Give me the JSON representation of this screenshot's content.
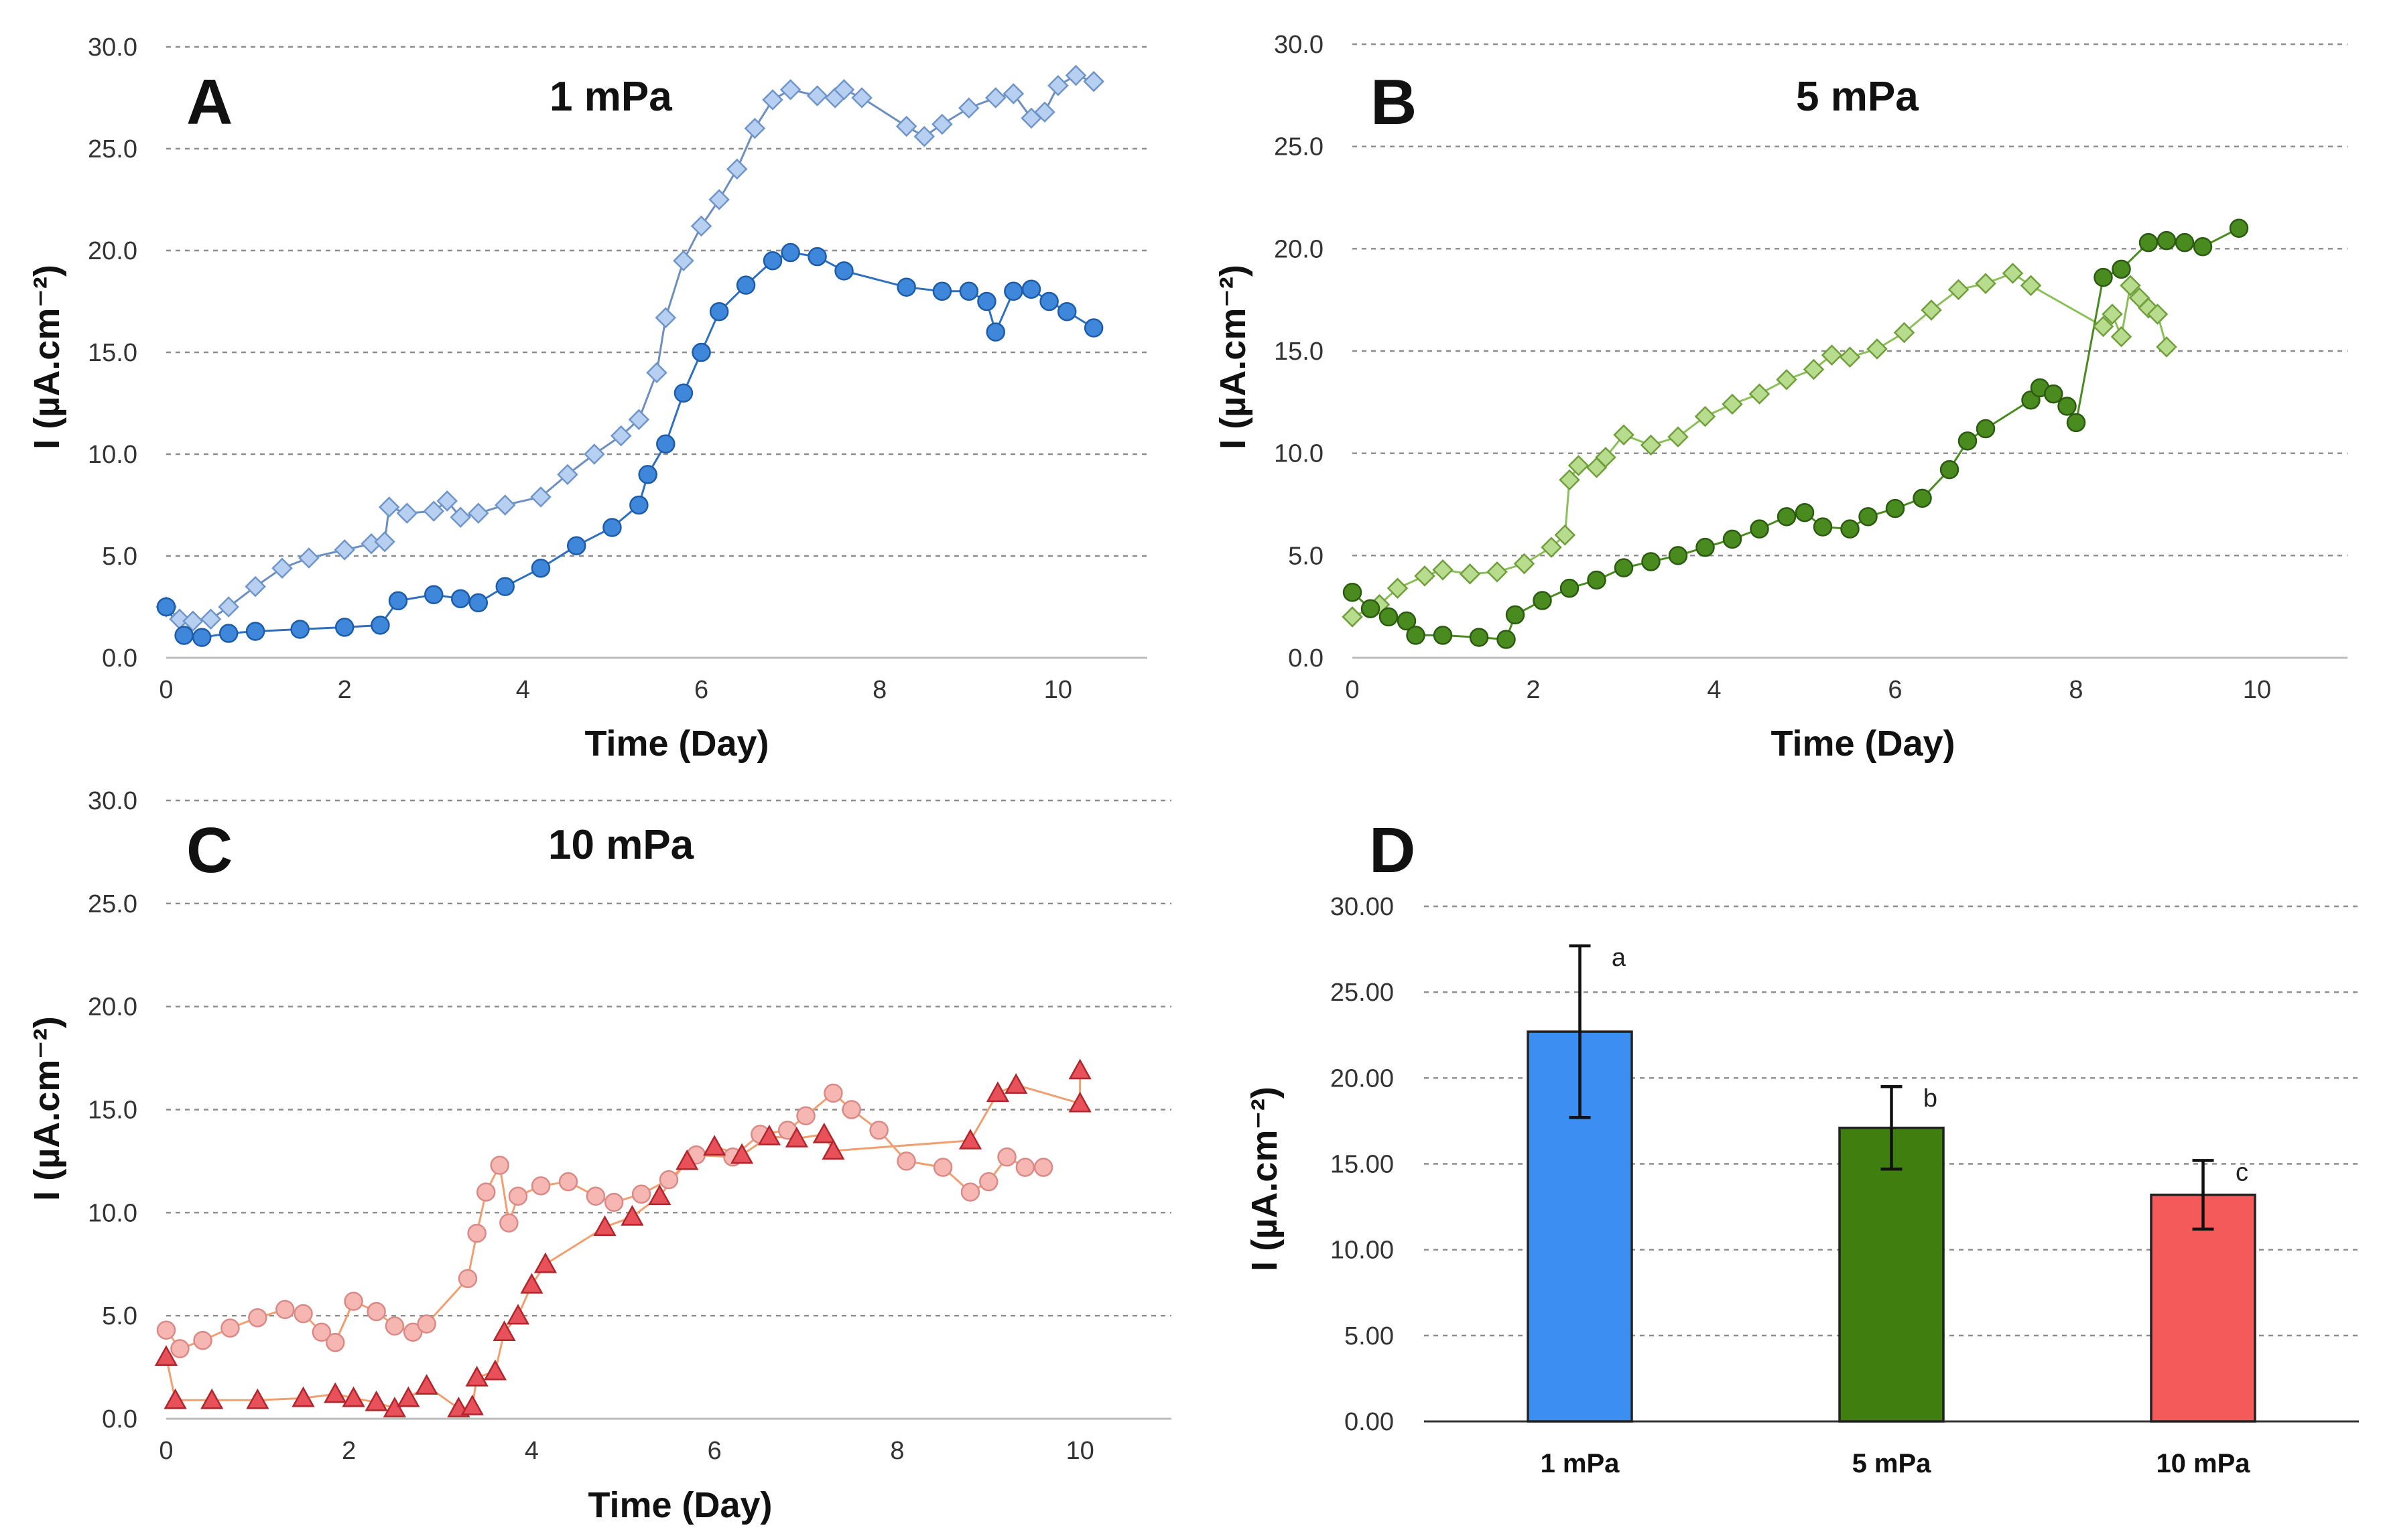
{
  "chart_data": [
    {
      "panel": "A",
      "type": "line",
      "title": "1 mPa",
      "xlabel": "Time (Day)",
      "ylabel": "I (µA.cm⁻²)",
      "xlim": [
        0,
        11
      ],
      "ylim": [
        0,
        30
      ],
      "xticks": [
        0,
        2,
        4,
        6,
        8,
        10
      ],
      "yticks": [
        "0.0",
        "5.0",
        "10.0",
        "15.0",
        "20.0",
        "25.0",
        "30.0"
      ],
      "series": [
        {
          "name": "diamond series",
          "marker": "diamond",
          "color": "#b7d0f2",
          "stroke": "#6f95c8",
          "line": "#6d8fc0",
          "points": [
            [
              0,
              2.5
            ],
            [
              0.15,
              1.9
            ],
            [
              0.3,
              1.8
            ],
            [
              0.5,
              1.9
            ],
            [
              0.7,
              2.5
            ],
            [
              1,
              3.5
            ],
            [
              1.3,
              4.4
            ],
            [
              1.6,
              4.9
            ],
            [
              2,
              5.3
            ],
            [
              2.3,
              5.6
            ],
            [
              2.45,
              5.7
            ],
            [
              2.5,
              7.4
            ],
            [
              2.7,
              7.1
            ],
            [
              3,
              7.2
            ],
            [
              3.15,
              7.7
            ],
            [
              3.3,
              6.9
            ],
            [
              3.5,
              7.1
            ],
            [
              3.8,
              7.5
            ],
            [
              4.2,
              7.9
            ],
            [
              4.5,
              9.0
            ],
            [
              4.8,
              10.0
            ],
            [
              5.1,
              10.9
            ],
            [
              5.3,
              11.7
            ],
            [
              5.5,
              14.0
            ],
            [
              5.6,
              16.7
            ],
            [
              5.8,
              19.5
            ],
            [
              6,
              21.2
            ],
            [
              6.2,
              22.5
            ],
            [
              6.4,
              24.0
            ],
            [
              6.6,
              26.0
            ],
            [
              6.8,
              27.4
            ],
            [
              7,
              27.9
            ],
            [
              7.3,
              27.6
            ],
            [
              7.5,
              27.5
            ],
            [
              7.6,
              27.9
            ],
            [
              7.8,
              27.5
            ],
            [
              8.3,
              26.1
            ],
            [
              8.5,
              25.6
            ],
            [
              8.7,
              26.2
            ],
            [
              9,
              27.0
            ],
            [
              9.3,
              27.5
            ],
            [
              9.5,
              27.7
            ],
            [
              9.7,
              26.5
            ],
            [
              9.85,
              26.8
            ],
            [
              10,
              28.1
            ],
            [
              10.2,
              28.6
            ],
            [
              10.4,
              28.3
            ]
          ]
        },
        {
          "name": "circle series",
          "marker": "circle",
          "color": "#3f87da",
          "stroke": "#1d5ca8",
          "line": "#2f6fbf",
          "points": [
            [
              0,
              2.5
            ],
            [
              0.2,
              1.1
            ],
            [
              0.4,
              1.0
            ],
            [
              0.7,
              1.2
            ],
            [
              1,
              1.3
            ],
            [
              1.5,
              1.4
            ],
            [
              2,
              1.5
            ],
            [
              2.4,
              1.6
            ],
            [
              2.6,
              2.8
            ],
            [
              3,
              3.1
            ],
            [
              3.3,
              2.9
            ],
            [
              3.5,
              2.7
            ],
            [
              3.8,
              3.5
            ],
            [
              4.2,
              4.4
            ],
            [
              4.6,
              5.5
            ],
            [
              5,
              6.4
            ],
            [
              5.3,
              7.5
            ],
            [
              5.4,
              9.0
            ],
            [
              5.6,
              10.5
            ],
            [
              5.8,
              13.0
            ],
            [
              6,
              15.0
            ],
            [
              6.2,
              17.0
            ],
            [
              6.5,
              18.3
            ],
            [
              6.8,
              19.5
            ],
            [
              7,
              19.9
            ],
            [
              7.3,
              19.7
            ],
            [
              7.6,
              19.0
            ],
            [
              8.3,
              18.2
            ],
            [
              8.7,
              18.0
            ],
            [
              9,
              18.0
            ],
            [
              9.2,
              17.5
            ],
            [
              9.3,
              16.0
            ],
            [
              9.5,
              18.0
            ],
            [
              9.7,
              18.1
            ],
            [
              9.9,
              17.5
            ],
            [
              10.1,
              17.0
            ],
            [
              10.4,
              16.2
            ]
          ]
        }
      ]
    },
    {
      "panel": "B",
      "type": "line",
      "title": "5 mPa",
      "xlabel": "Time (Day)",
      "ylabel": "I (µA.cm⁻²)",
      "xlim": [
        0,
        11
      ],
      "ylim": [
        0,
        30
      ],
      "xticks": [
        0,
        2,
        4,
        6,
        8,
        10
      ],
      "yticks": [
        "0.0",
        "5.0",
        "10.0",
        "15.0",
        "20.0",
        "25.0",
        "30.0"
      ],
      "series": [
        {
          "name": "diamond series",
          "marker": "diamond",
          "color": "#b8dc8e",
          "stroke": "#6f9e3a",
          "line": "#8cbf5a",
          "points": [
            [
              0,
              2.0
            ],
            [
              0.3,
              2.6
            ],
            [
              0.5,
              3.4
            ],
            [
              0.8,
              4.0
            ],
            [
              1,
              4.3
            ],
            [
              1.3,
              4.1
            ],
            [
              1.6,
              4.2
            ],
            [
              1.9,
              4.6
            ],
            [
              2.2,
              5.4
            ],
            [
              2.35,
              6.0
            ],
            [
              2.4,
              8.7
            ],
            [
              2.5,
              9.4
            ],
            [
              2.7,
              9.3
            ],
            [
              2.8,
              9.8
            ],
            [
              3,
              10.9
            ],
            [
              3.3,
              10.4
            ],
            [
              3.6,
              10.8
            ],
            [
              3.9,
              11.8
            ],
            [
              4.2,
              12.4
            ],
            [
              4.5,
              12.9
            ],
            [
              4.8,
              13.6
            ],
            [
              5.1,
              14.1
            ],
            [
              5.3,
              14.8
            ],
            [
              5.5,
              14.7
            ],
            [
              5.8,
              15.1
            ],
            [
              6.1,
              15.9
            ],
            [
              6.4,
              17.0
            ],
            [
              6.7,
              18.0
            ],
            [
              7.0,
              18.3
            ],
            [
              7.3,
              18.8
            ],
            [
              7.5,
              18.2
            ],
            [
              8.3,
              16.2
            ],
            [
              8.4,
              16.8
            ],
            [
              8.5,
              15.7
            ],
            [
              8.6,
              18.2
            ],
            [
              8.7,
              17.6
            ],
            [
              8.8,
              17.1
            ],
            [
              8.9,
              16.8
            ],
            [
              9.0,
              15.2
            ]
          ]
        },
        {
          "name": "circle series",
          "marker": "circle",
          "color": "#4a8b1f",
          "stroke": "#2b5a10",
          "line": "#4a8b1f",
          "points": [
            [
              0,
              3.2
            ],
            [
              0.2,
              2.4
            ],
            [
              0.4,
              2.0
            ],
            [
              0.6,
              1.8
            ],
            [
              0.7,
              1.1
            ],
            [
              1,
              1.1
            ],
            [
              1.4,
              1.0
            ],
            [
              1.7,
              0.9
            ],
            [
              1.8,
              2.1
            ],
            [
              2.1,
              2.8
            ],
            [
              2.4,
              3.4
            ],
            [
              2.7,
              3.8
            ],
            [
              3,
              4.4
            ],
            [
              3.3,
              4.7
            ],
            [
              3.6,
              5.0
            ],
            [
              3.9,
              5.4
            ],
            [
              4.2,
              5.8
            ],
            [
              4.5,
              6.3
            ],
            [
              4.8,
              6.9
            ],
            [
              5,
              7.1
            ],
            [
              5.2,
              6.4
            ],
            [
              5.5,
              6.3
            ],
            [
              5.7,
              6.9
            ],
            [
              6,
              7.3
            ],
            [
              6.3,
              7.8
            ],
            [
              6.6,
              9.2
            ],
            [
              6.8,
              10.6
            ],
            [
              7,
              11.2
            ],
            [
              7.5,
              12.6
            ],
            [
              7.6,
              13.2
            ],
            [
              7.75,
              12.9
            ],
            [
              7.9,
              12.3
            ],
            [
              8,
              11.5
            ],
            [
              8.3,
              18.6
            ],
            [
              8.5,
              19.0
            ],
            [
              8.8,
              20.3
            ],
            [
              9,
              20.4
            ],
            [
              9.2,
              20.3
            ],
            [
              9.4,
              20.1
            ],
            [
              9.8,
              21.0
            ]
          ]
        }
      ]
    },
    {
      "panel": "C",
      "type": "line",
      "title": "10 mPa",
      "xlabel": "Time (Day)",
      "ylabel": "I (µA.cm⁻²)",
      "xlim": [
        0,
        11
      ],
      "ylim": [
        0,
        30
      ],
      "xticks": [
        0,
        2,
        4,
        6,
        8,
        10
      ],
      "yticks": [
        "0.0",
        "5.0",
        "10.0",
        "15.0",
        "20.0",
        "25.0",
        "30.0"
      ],
      "series": [
        {
          "name": "circle series",
          "marker": "circle",
          "color": "#f6b7b3",
          "stroke": "#d98a86",
          "line": "#f0a070",
          "points": [
            [
              0,
              4.3
            ],
            [
              0.15,
              3.4
            ],
            [
              0.4,
              3.8
            ],
            [
              0.7,
              4.4
            ],
            [
              1,
              4.9
            ],
            [
              1.3,
              5.3
            ],
            [
              1.5,
              5.1
            ],
            [
              1.7,
              4.2
            ],
            [
              1.85,
              3.7
            ],
            [
              2.05,
              5.7
            ],
            [
              2.3,
              5.2
            ],
            [
              2.5,
              4.5
            ],
            [
              2.7,
              4.2
            ],
            [
              2.85,
              4.6
            ],
            [
              3.3,
              6.8
            ],
            [
              3.4,
              9.0
            ],
            [
              3.5,
              11.0
            ],
            [
              3.65,
              12.3
            ],
            [
              3.75,
              9.5
            ],
            [
              3.85,
              10.8
            ],
            [
              4.1,
              11.3
            ],
            [
              4.4,
              11.5
            ],
            [
              4.7,
              10.8
            ],
            [
              4.9,
              10.5
            ],
            [
              5.2,
              10.9
            ],
            [
              5.5,
              11.6
            ],
            [
              5.8,
              12.8
            ],
            [
              6.2,
              12.7
            ],
            [
              6.5,
              13.8
            ],
            [
              6.8,
              14.0
            ],
            [
              7,
              14.7
            ],
            [
              7.3,
              15.8
            ],
            [
              7.5,
              15.0
            ],
            [
              7.8,
              14.0
            ],
            [
              8.1,
              12.5
            ],
            [
              8.5,
              12.2
            ],
            [
              8.8,
              11.0
            ],
            [
              9,
              11.5
            ],
            [
              9.2,
              12.7
            ],
            [
              9.4,
              12.2
            ],
            [
              9.6,
              12.2
            ]
          ]
        },
        {
          "name": "triangle series",
          "marker": "triangle",
          "color": "#e8505a",
          "stroke": "#b0262d",
          "line": "#f0a070",
          "points": [
            [
              0,
              3.0
            ],
            [
              0.1,
              0.9
            ],
            [
              0.5,
              0.9
            ],
            [
              1,
              0.9
            ],
            [
              1.5,
              1.0
            ],
            [
              1.85,
              1.2
            ],
            [
              2.05,
              1.0
            ],
            [
              2.3,
              0.8
            ],
            [
              2.5,
              0.5
            ],
            [
              2.65,
              1.0
            ],
            [
              2.85,
              1.6
            ],
            [
              3.2,
              0.5
            ],
            [
              3.35,
              0.6
            ],
            [
              3.4,
              2.0
            ],
            [
              3.6,
              2.3
            ],
            [
              3.7,
              4.2
            ],
            [
              3.85,
              5.0
            ],
            [
              4,
              6.5
            ],
            [
              4.15,
              7.5
            ],
            [
              4.8,
              9.3
            ],
            [
              5.1,
              9.8
            ],
            [
              5.4,
              10.8
            ],
            [
              5.7,
              12.5
            ],
            [
              6,
              13.2
            ],
            [
              6.3,
              12.8
            ],
            [
              6.6,
              13.7
            ],
            [
              6.9,
              13.6
            ],
            [
              7.2,
              13.8
            ],
            [
              7.3,
              13.0
            ],
            [
              8.8,
              13.5
            ],
            [
              9.1,
              15.8
            ],
            [
              9.3,
              16.2
            ],
            [
              10,
              15.3
            ],
            [
              10,
              16.9
            ]
          ]
        }
      ]
    },
    {
      "panel": "D",
      "type": "bar",
      "xlabel": "",
      "ylabel": "I (µA.cm⁻²)",
      "ylim": [
        0,
        30
      ],
      "yticks": [
        "0.00",
        "5.00",
        "10.00",
        "15.00",
        "20.00",
        "25.00",
        "30.00"
      ],
      "categories": [
        "1 mPa",
        "5 mPa",
        "10 mPa"
      ],
      "values": [
        22.7,
        17.1,
        13.2
      ],
      "errors": [
        5.0,
        2.4,
        2.0
      ],
      "letters": [
        "a",
        "b",
        "c"
      ],
      "colors": [
        "#3b8ef2",
        "#3f7f10",
        "#f45a5a"
      ]
    }
  ]
}
